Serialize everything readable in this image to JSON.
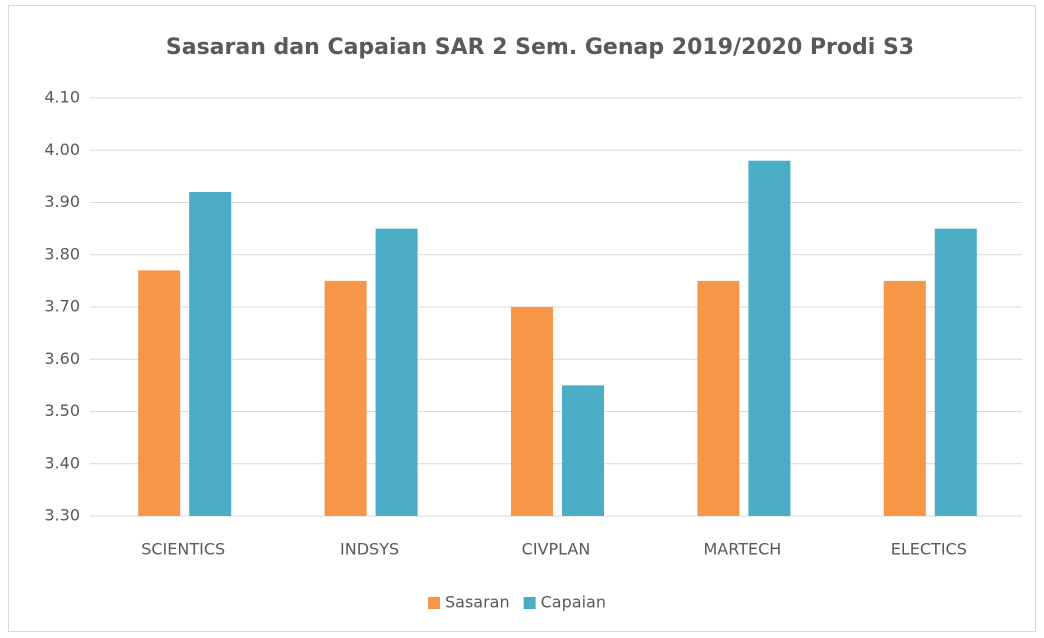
{
  "chart_data": {
    "type": "bar",
    "title": "Sasaran dan Capaian SAR 2 Sem. Genap 2019/2020 Prodi S3",
    "categories": [
      "SCIENTICS",
      "INDSYS",
      "CIVPLAN",
      "MARTECH",
      "ELECTICS"
    ],
    "series": [
      {
        "name": "Sasaran",
        "color": "#f79646",
        "values": [
          3.77,
          3.75,
          3.7,
          3.75,
          3.75
        ]
      },
      {
        "name": "Capaian",
        "color": "#4bacc6",
        "values": [
          3.92,
          3.85,
          3.55,
          3.98,
          3.85
        ]
      }
    ],
    "ylim": [
      3.3,
      4.1
    ],
    "yticks": [
      {
        "value": 3.3,
        "label": "3.30"
      },
      {
        "value": 3.4,
        "label": "3.40"
      },
      {
        "value": 3.5,
        "label": "3.50"
      },
      {
        "value": 3.6,
        "label": "3.60"
      },
      {
        "value": 3.7,
        "label": "3.70"
      },
      {
        "value": 3.8,
        "label": "3.80"
      },
      {
        "value": 3.9,
        "label": "3.90"
      },
      {
        "value": 4.0,
        "label": "4.00"
      },
      {
        "value": 4.1,
        "label": "4.10"
      }
    ],
    "grid": true,
    "legend": "bottom"
  }
}
